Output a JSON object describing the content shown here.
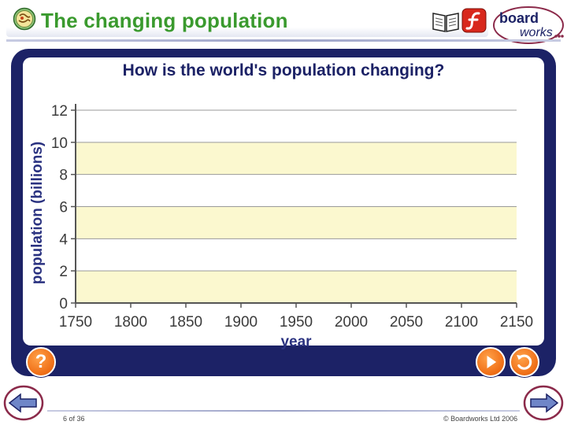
{
  "header": {
    "title": "The changing population",
    "topic_icon": "globe-icon",
    "book_icon": "book-icon",
    "flash_icon": "flash-icon",
    "logo": {
      "line1": "board",
      "line2": "works"
    }
  },
  "panel": {
    "question": "How is the world's population changing?",
    "help_button": {
      "icon": "help-icon",
      "label": "?"
    },
    "play_button": {
      "icon": "play-icon"
    },
    "reset_button": {
      "icon": "reset-icon"
    }
  },
  "chart_data": {
    "type": "line",
    "title": "How is the world's population changing?",
    "xlabel": "year",
    "ylabel": "population (billions)",
    "x_ticks": [
      1750,
      1800,
      1850,
      1900,
      1950,
      2000,
      2050,
      2100,
      2150
    ],
    "y_ticks": [
      0,
      2,
      4,
      6,
      8,
      10,
      12
    ],
    "xlim": [
      1750,
      2150
    ],
    "ylim": [
      0,
      12
    ],
    "grid": true,
    "band_color": "#fbf8cf",
    "series": []
  },
  "footer": {
    "page_counter": "6 of 36",
    "copyright": "© Boardworks Ltd 2006",
    "prev_icon": "back-arrow-icon",
    "next_icon": "forward-arrow-icon"
  },
  "colors": {
    "title_green": "#3a9a2e",
    "panel_navy": "#1c2266",
    "button_orange": "#f07018"
  }
}
